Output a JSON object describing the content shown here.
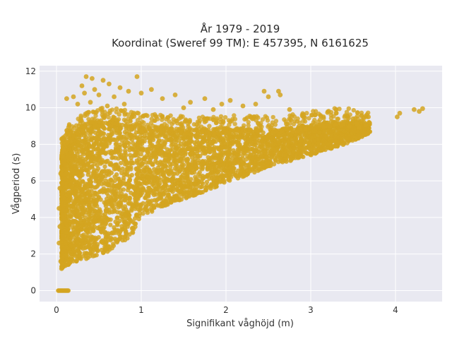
{
  "chart_data": {
    "type": "scatter",
    "title_line1": "År 1979 - 2019",
    "title_line2": "Koordinat (Sweref 99 TM): E 457395, N 6161625",
    "xlabel": "Signifikant våghöjd (m)",
    "ylabel": "Vågperiod (s)",
    "xlim": [
      -0.2,
      4.55
    ],
    "ylim": [
      -0.6,
      12.3
    ],
    "xticks": [
      0,
      1,
      2,
      3,
      4
    ],
    "yticks": [
      0,
      2,
      4,
      6,
      8,
      10,
      12
    ],
    "grid": true,
    "point_color": "#d4a520",
    "plot_bg": "#e9e9f1",
    "envelope": {
      "lower": [
        [
          0.06,
          1.2
        ],
        [
          0.1,
          1.35
        ],
        [
          0.2,
          1.5
        ],
        [
          0.4,
          1.8
        ],
        [
          0.6,
          2.1
        ],
        [
          0.8,
          2.7
        ],
        [
          0.9,
          3.1
        ],
        [
          1.0,
          4.0
        ],
        [
          1.2,
          4.5
        ],
        [
          1.5,
          5.0
        ],
        [
          1.8,
          5.5
        ],
        [
          2.0,
          5.9
        ],
        [
          2.3,
          6.4
        ],
        [
          2.6,
          6.9
        ],
        [
          3.0,
          7.4
        ],
        [
          3.4,
          8.0
        ],
        [
          3.7,
          8.6
        ]
      ],
      "upper": [
        [
          0.06,
          7.6
        ],
        [
          0.15,
          8.4
        ],
        [
          0.3,
          9.0
        ],
        [
          0.5,
          9.3
        ],
        [
          0.8,
          9.3
        ],
        [
          1.0,
          9.0
        ],
        [
          1.3,
          8.9
        ],
        [
          1.6,
          8.8
        ],
        [
          2.0,
          8.9
        ],
        [
          2.3,
          8.9
        ],
        [
          2.6,
          8.8
        ],
        [
          3.0,
          9.1
        ],
        [
          3.3,
          9.3
        ],
        [
          3.7,
          9.2
        ]
      ]
    },
    "outliers": [
      {
        "x": 0.35,
        "y": 11.7
      },
      {
        "x": 0.42,
        "y": 11.6
      },
      {
        "x": 0.55,
        "y": 11.5
      },
      {
        "x": 0.95,
        "y": 11.7
      },
      {
        "x": 0.3,
        "y": 11.2
      },
      {
        "x": 0.45,
        "y": 11.0
      },
      {
        "x": 0.62,
        "y": 11.3
      },
      {
        "x": 0.75,
        "y": 11.1
      },
      {
        "x": 0.2,
        "y": 10.6
      },
      {
        "x": 0.12,
        "y": 10.5
      },
      {
        "x": 0.33,
        "y": 10.8
      },
      {
        "x": 0.5,
        "y": 10.7
      },
      {
        "x": 0.68,
        "y": 10.6
      },
      {
        "x": 0.85,
        "y": 10.9
      },
      {
        "x": 1.0,
        "y": 10.8
      },
      {
        "x": 1.12,
        "y": 11.0
      },
      {
        "x": 1.25,
        "y": 10.5
      },
      {
        "x": 1.4,
        "y": 10.7
      },
      {
        "x": 1.58,
        "y": 10.3
      },
      {
        "x": 1.75,
        "y": 10.5
      },
      {
        "x": 1.95,
        "y": 10.2
      },
      {
        "x": 2.05,
        "y": 10.4
      },
      {
        "x": 2.2,
        "y": 10.1
      },
      {
        "x": 2.35,
        "y": 10.2
      },
      {
        "x": 2.5,
        "y": 10.6
      },
      {
        "x": 2.62,
        "y": 10.9
      },
      {
        "x": 2.64,
        "y": 10.7
      },
      {
        "x": 2.45,
        "y": 10.9
      },
      {
        "x": 0.25,
        "y": 10.2
      },
      {
        "x": 0.4,
        "y": 10.3
      },
      {
        "x": 0.6,
        "y": 10.1
      },
      {
        "x": 0.8,
        "y": 10.2
      },
      {
        "x": 1.5,
        "y": 10.0
      },
      {
        "x": 1.85,
        "y": 9.9
      },
      {
        "x": 2.75,
        "y": 9.9
      },
      {
        "x": 2.9,
        "y": 9.6
      },
      {
        "x": 3.05,
        "y": 9.6
      },
      {
        "x": 3.15,
        "y": 9.5
      },
      {
        "x": 3.3,
        "y": 9.7
      },
      {
        "x": 3.4,
        "y": 9.5
      },
      {
        "x": 3.5,
        "y": 9.4
      },
      {
        "x": 3.6,
        "y": 9.3
      },
      {
        "x": 3.68,
        "y": 9.5
      },
      {
        "x": 4.02,
        "y": 9.5
      },
      {
        "x": 4.05,
        "y": 9.7
      },
      {
        "x": 4.22,
        "y": 9.9
      },
      {
        "x": 4.28,
        "y": 9.8
      },
      {
        "x": 4.32,
        "y": 9.95
      },
      {
        "x": 3.2,
        "y": 8.0
      },
      {
        "x": 3.0,
        "y": 7.7
      },
      {
        "x": 2.85,
        "y": 7.5
      },
      {
        "x": 2.7,
        "y": 7.4
      },
      {
        "x": 0.08,
        "y": 7.3
      },
      {
        "x": 0.05,
        "y": 6.4
      },
      {
        "x": 0.04,
        "y": 5.6
      },
      {
        "x": 0.03,
        "y": 4.5
      },
      {
        "x": 0.04,
        "y": 3.5
      },
      {
        "x": 0.03,
        "y": 2.6
      },
      {
        "x": 0.05,
        "y": 1.6
      },
      {
        "x": 0.06,
        "y": 1.2
      }
    ],
    "zero_period_points": {
      "x_min": 0.02,
      "x_max": 0.14,
      "y": 0.0,
      "count": 14
    }
  }
}
